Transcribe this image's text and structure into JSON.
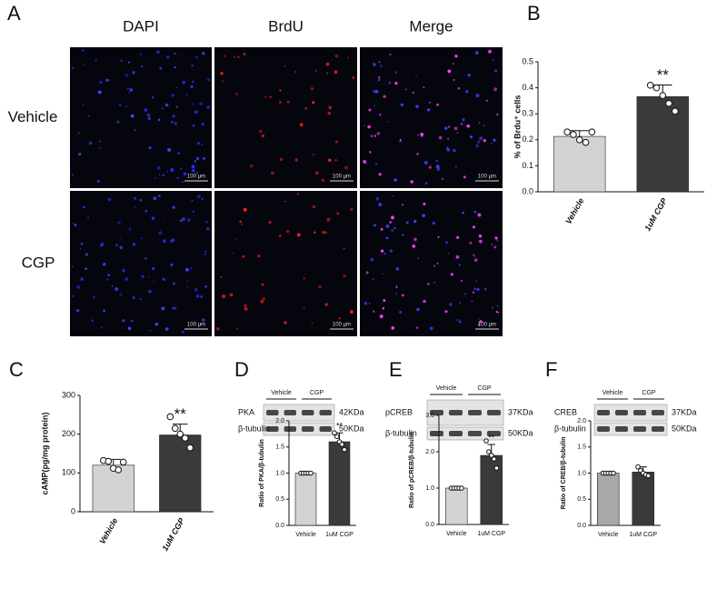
{
  "panel_labels": [
    "A",
    "B",
    "C",
    "D",
    "E",
    "F"
  ],
  "microscopy": {
    "columns": [
      "DAPI",
      "BrdU",
      "Merge"
    ],
    "rows": [
      "Vehicle",
      "CGP"
    ],
    "scale_bar": "100 μm"
  },
  "blots": [
    {
      "groups": [
        "Vehicle",
        "CGP"
      ],
      "bands": [
        {
          "name": "PKA",
          "size": "42KDa"
        },
        {
          "name": "β-tubulin",
          "size": "50KDa"
        }
      ]
    },
    {
      "groups": [
        "Vehicle",
        "CGP"
      ],
      "bands": [
        {
          "name": "pCREB",
          "size": "37KDa"
        },
        {
          "name": "β-tubulin",
          "size": "50KDa"
        }
      ]
    },
    {
      "groups": [
        "Vehicle",
        "CGP"
      ],
      "bands": [
        {
          "name": "CREB",
          "size": "37KDa"
        },
        {
          "name": "β-tubulin",
          "size": "50KDa"
        }
      ]
    }
  ],
  "chart_data": [
    {
      "type": "bar",
      "ylabel": "% of Brdu⁺ cells",
      "categories": [
        "Vehicle",
        "1uM CGP"
      ],
      "values": [
        0.213,
        0.366
      ],
      "errors": [
        0.022,
        0.045
      ],
      "points": [
        [
          0.23,
          0.22,
          0.2,
          0.19,
          0.23
        ],
        [
          0.41,
          0.4,
          0.37,
          0.34,
          0.31
        ]
      ],
      "colors": [
        "#d3d3d3",
        "#3a3a3a"
      ],
      "significance": "**",
      "ylim": [
        0,
        0.5
      ],
      "yticks": [
        {
          "value": 0,
          "label": "0.0"
        },
        0.1,
        0.2,
        0.3,
        0.4,
        0.5
      ]
    },
    {
      "type": "bar",
      "ylabel": "cAMP(pg/mg protein)",
      "categories": [
        "Vehicle",
        "1uM CGP"
      ],
      "values": [
        120,
        198
      ],
      "errors": [
        15,
        28
      ],
      "points": [
        [
          132,
          130,
          112,
          108,
          128
        ],
        [
          245,
          215,
          200,
          190,
          165
        ]
      ],
      "colors": [
        "#d3d3d3",
        "#3a3a3a"
      ],
      "significance": "**",
      "ylim": [
        0,
        300
      ],
      "yticks": [
        0,
        100,
        200,
        300
      ]
    },
    {
      "type": "bar",
      "ylabel": "Ratio of PKA/β-tubulin",
      "categories": [
        "Vehicle",
        "1uM CGP"
      ],
      "values": [
        1.0,
        1.6
      ],
      "errors": [
        0.01,
        0.17
      ],
      "points": [
        [
          1.0,
          1.0,
          1.0,
          1.0,
          1.0
        ],
        [
          1.77,
          1.7,
          1.6,
          1.55,
          1.45
        ]
      ],
      "colors": [
        "#d3d3d3",
        "#3a3a3a"
      ],
      "significance": "**",
      "ylim": [
        0,
        2
      ],
      "yticks": [
        {
          "value": 0,
          "label": "0.0"
        },
        0.5,
        {
          "value": 1,
          "label": "1.0"
        },
        1.5,
        {
          "value": 2,
          "label": "2.0"
        }
      ]
    },
    {
      "type": "bar",
      "ylabel": "Ratio of pCREB/β-tubulin",
      "categories": [
        "Vehicle",
        "1uM CGP"
      ],
      "values": [
        1.0,
        1.9
      ],
      "errors": [
        0.01,
        0.3
      ],
      "points": [
        [
          1.0,
          1.0,
          1.0,
          1.0,
          1.0
        ],
        [
          2.3,
          2.0,
          1.9,
          1.8,
          1.55
        ]
      ],
      "colors": [
        "#d3d3d3",
        "#3a3a3a"
      ],
      "significance": "**",
      "ylim": [
        0,
        3
      ],
      "yticks": [
        {
          "value": 0,
          "label": "0.0"
        },
        {
          "value": 1,
          "label": "1.0"
        },
        {
          "value": 2,
          "label": "2.0"
        },
        {
          "value": 3,
          "label": "3.0"
        }
      ]
    },
    {
      "type": "bar",
      "ylabel": "Ratio of CREB/β-tubulin",
      "categories": [
        "Vehicle",
        "1uM CGP"
      ],
      "values": [
        1.0,
        1.02
      ],
      "errors": [
        0.01,
        0.1
      ],
      "points": [
        [
          1.0,
          1.0,
          1.0,
          1.0,
          1.0
        ],
        [
          1.12,
          1.05,
          1.0,
          0.97,
          0.95
        ]
      ],
      "colors": [
        "#a8a8a8",
        "#3a3a3a"
      ],
      "ylim": [
        0,
        2
      ],
      "yticks": [
        {
          "value": 0,
          "label": "0.0"
        },
        0.5,
        {
          "value": 1,
          "label": "1.0"
        },
        1.5,
        {
          "value": 2,
          "label": "2.0"
        }
      ]
    }
  ]
}
